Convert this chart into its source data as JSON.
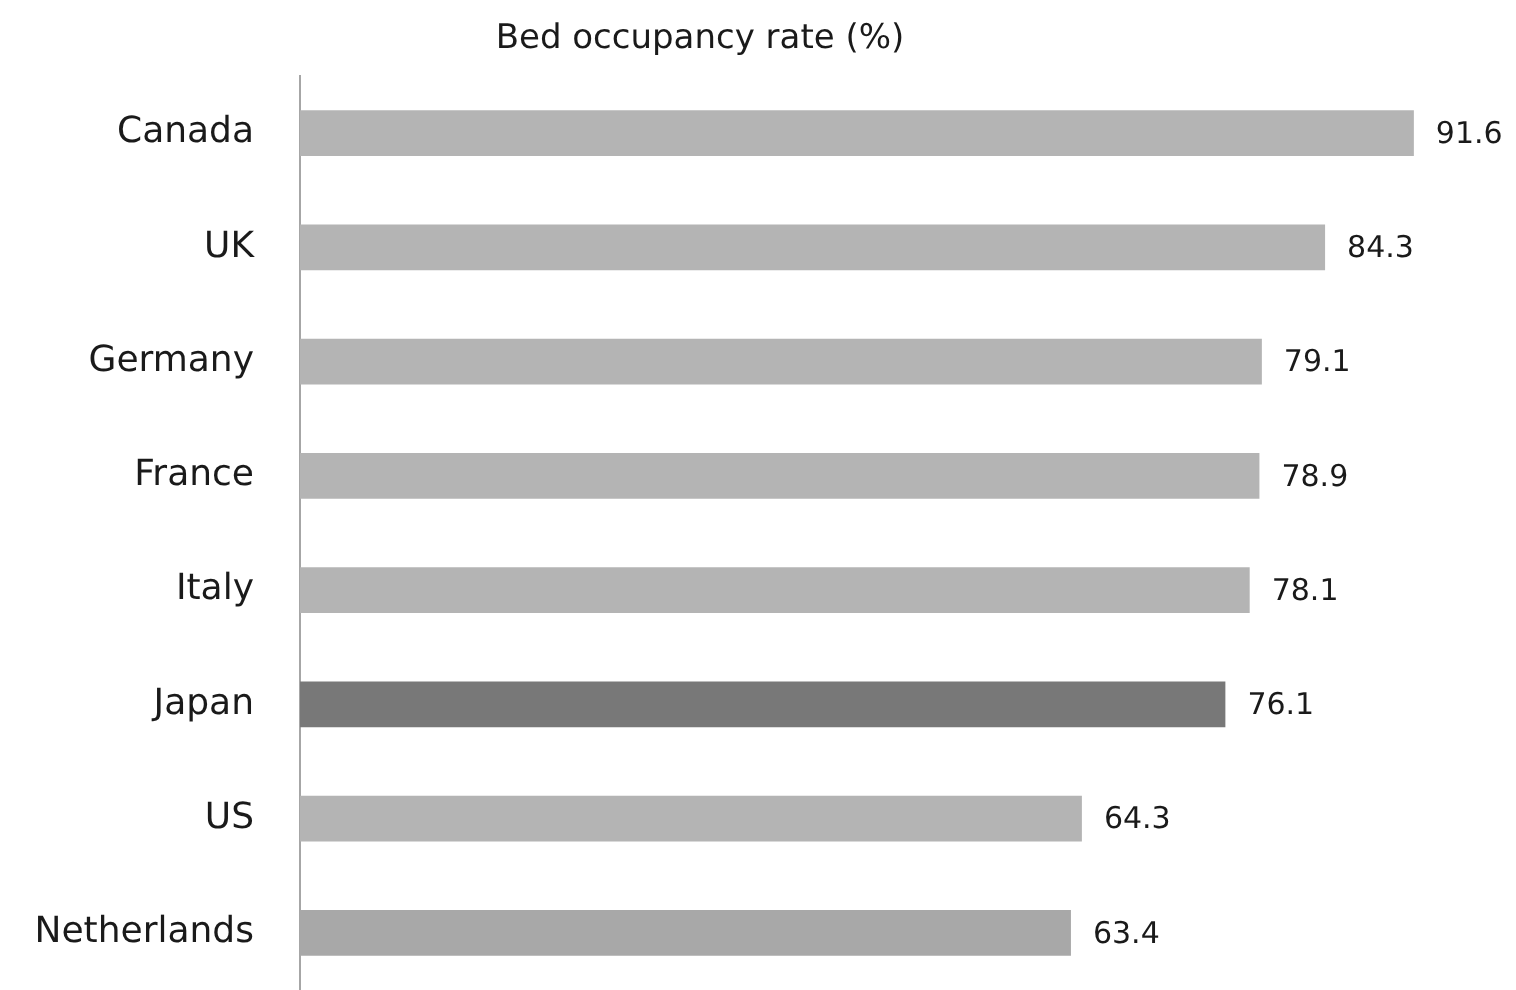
{
  "chart_data": {
    "type": "bar",
    "orientation": "horizontal",
    "title": "Bed occupancy rate (%)",
    "categories": [
      "Canada",
      "UK",
      "Germany",
      "France",
      "Italy",
      "Japan",
      "US",
      "Netherlands"
    ],
    "values": [
      91.6,
      84.3,
      79.1,
      78.9,
      78.1,
      76.1,
      64.3,
      63.4
    ],
    "colors": [
      "#b4b4b4",
      "#b4b4b4",
      "#b4b4b4",
      "#b4b4b4",
      "#b4b4b4",
      "#787878",
      "#b4b4b4",
      "#a8a8a8"
    ],
    "data_labels": true
  }
}
